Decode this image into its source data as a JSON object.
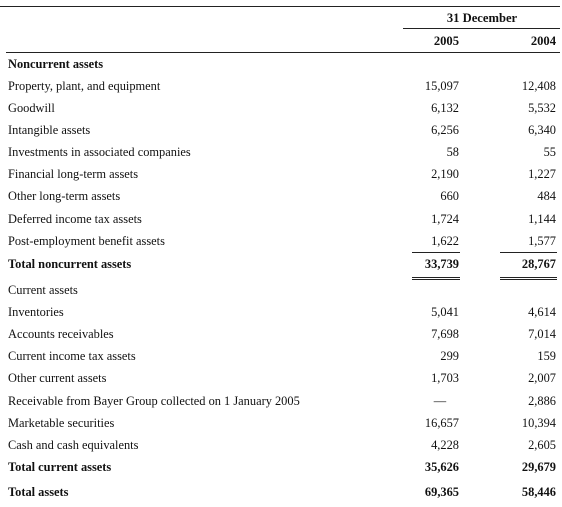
{
  "header": {
    "date_label": "31 December",
    "year_1": "2005",
    "year_2": "2004"
  },
  "rows": [
    {
      "label": "Noncurrent assets",
      "v1": "",
      "v2": "",
      "style": "bold"
    },
    {
      "label": "Property, plant, and equipment",
      "v1": "15,097",
      "v2": "12,408"
    },
    {
      "label": "Goodwill",
      "v1": "6,132",
      "v2": "5,532"
    },
    {
      "label": "Intangible assets",
      "v1": "6,256",
      "v2": "6,340"
    },
    {
      "label": "Investments in associated companies",
      "v1": "58",
      "v2": "55"
    },
    {
      "label": "Financial long-term assets",
      "v1": "2,190",
      "v2": "1,227"
    },
    {
      "label": "Other long-term assets",
      "v1": "660",
      "v2": "484"
    },
    {
      "label": "Deferred income tax assets",
      "v1": "1,724",
      "v2": "1,144"
    },
    {
      "label": "Post-employment benefit assets",
      "v1": "1,622",
      "v2": "1,577"
    },
    {
      "label": "Total noncurrent assets",
      "v1": "33,739",
      "v2": "28,767",
      "style": "bold"
    },
    {
      "label": "Current assets",
      "v1": "",
      "v2": ""
    },
    {
      "label": "Inventories",
      "v1": "5,041",
      "v2": "4,614"
    },
    {
      "label": "Accounts receivables",
      "v1": "7,698",
      "v2": "7,014"
    },
    {
      "label": "Current income tax assets",
      "v1": "299",
      "v2": "159"
    },
    {
      "label": "Other current assets",
      "v1": "1,703",
      "v2": "2,007"
    },
    {
      "label": "Receivable from Bayer Group collected on 1 January 2005",
      "v1": "—",
      "v2": "2,886"
    },
    {
      "label": "Marketable securities",
      "v1": "16,657",
      "v2": "10,394"
    },
    {
      "label": "Cash and cash equivalents",
      "v1": "4,228",
      "v2": "2,605"
    },
    {
      "label": "Total current assets",
      "v1": "35,626",
      "v2": "29,679",
      "style": "bold"
    },
    {
      "label": "Total assets",
      "v1": "69,365",
      "v2": "58,446",
      "style": "bold"
    }
  ]
}
